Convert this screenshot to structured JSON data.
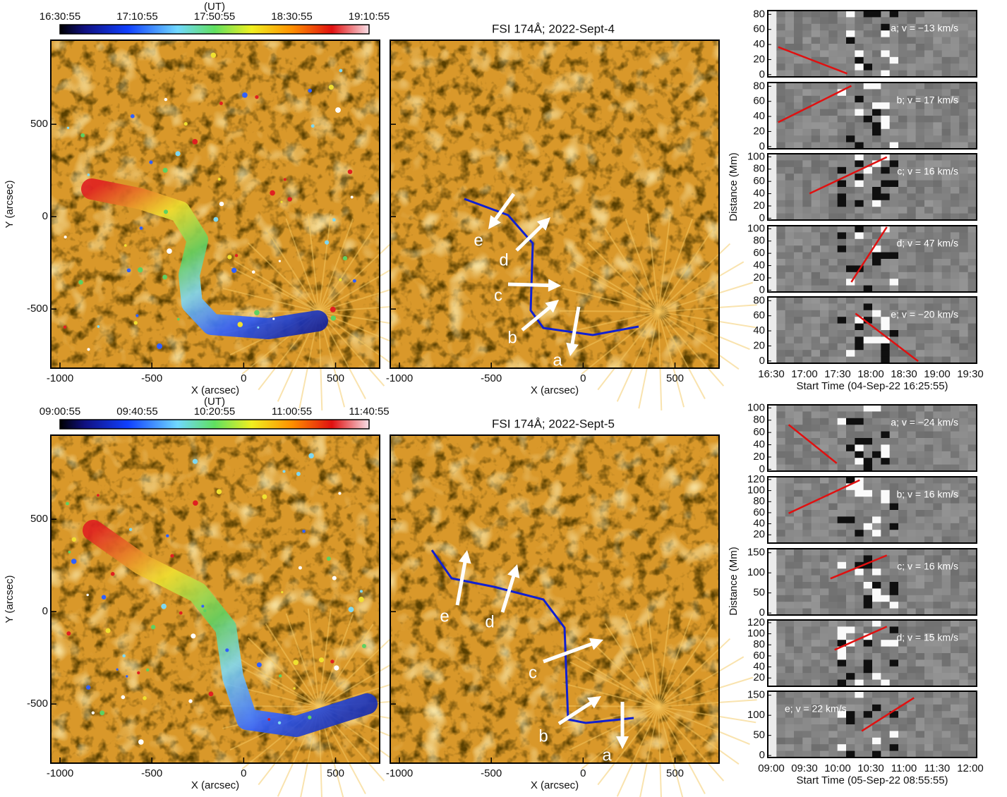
{
  "rows": [
    {
      "colorbar": {
        "unit": "(UT)",
        "ticks": [
          "16:30:55",
          "17:10:55",
          "17:50:55",
          "18:30:55",
          "19:10:55"
        ]
      },
      "map_title": "FSI 174Å; 2022-Sept-4",
      "xlim": [
        -1050,
        740
      ],
      "ylim": [
        -820,
        955
      ],
      "xticks": [
        -1000,
        -500,
        0,
        500
      ],
      "yticks": [
        -500,
        0,
        500
      ],
      "xlabel": "X (arcsec)",
      "ylabel": "Y (arcsec)",
      "path_labels": [
        "a",
        "b",
        "c",
        "d",
        "e"
      ],
      "td": {
        "ylabel": "Distance (Mm)",
        "xlabel": "Start Time (04-Sep-22 16:25:55)",
        "xticks": [
          "16:30",
          "17:00",
          "17:30",
          "18:00",
          "18:30",
          "19:00",
          "19:30"
        ],
        "panels": [
          {
            "label": "a; v = −13 km/s",
            "ylim": [
              -3,
              85
            ],
            "yticks": [
              0,
              20,
              40,
              60,
              80
            ]
          },
          {
            "label": "b; v = 17 km/s",
            "ylim": [
              -3,
              85
            ],
            "yticks": [
              0,
              20,
              40,
              60,
              80
            ]
          },
          {
            "label": "c; v = 16 km/s",
            "ylim": [
              -3,
              105
            ],
            "yticks": [
              0,
              20,
              40,
              60,
              80,
              100
            ]
          },
          {
            "label": "d; v = 47 km/s",
            "ylim": [
              -3,
              105
            ],
            "yticks": [
              0,
              20,
              40,
              60,
              80,
              100
            ]
          },
          {
            "label": "e; v = −20 km/s",
            "ylim": [
              -3,
              85
            ],
            "yticks": [
              0,
              20,
              40,
              60,
              80
            ]
          }
        ]
      }
    },
    {
      "colorbar": {
        "unit": "(UT)",
        "ticks": [
          "09:00:55",
          "09:40:55",
          "10:20:55",
          "11:00:55",
          "11:40:55"
        ]
      },
      "map_title": "FSI 174Å; 2022-Sept-5",
      "xlim": [
        -1050,
        740
      ],
      "ylim": [
        -820,
        955
      ],
      "xticks": [
        -1000,
        -500,
        0,
        500
      ],
      "yticks": [
        -500,
        0,
        500
      ],
      "xlabel": "X (arcsec)",
      "ylabel": "Y (arcsec)",
      "path_labels": [
        "a",
        "b",
        "c",
        "d",
        "e"
      ],
      "td": {
        "ylabel": "Distance (Mm)",
        "xlabel": "Start Time (05-Sep-22 08:55:55)",
        "xticks": [
          "09:00",
          "09:30",
          "10:00",
          "10:30",
          "11:00",
          "11:30",
          "12:00"
        ],
        "panels": [
          {
            "label": "a; v = −24 km/s",
            "ylim": [
              -3,
              105
            ],
            "yticks": [
              0,
              20,
              40,
              60,
              80,
              100
            ]
          },
          {
            "label": "b; v = 16 km/s",
            "ylim": [
              5,
              125
            ],
            "yticks": [
              20,
              40,
              60,
              80,
              100,
              120
            ]
          },
          {
            "label": "c; v = 16 km/s",
            "ylim": [
              -5,
              160
            ],
            "yticks": [
              0,
              50,
              100,
              150
            ]
          },
          {
            "label": "d; v = 15 km/s",
            "ylim": [
              5,
              125
            ],
            "yticks": [
              20,
              40,
              60,
              80,
              100,
              120
            ]
          },
          {
            "label": "e; v = 22 km/s",
            "ylim": [
              -5,
              160
            ],
            "yticks": [
              0,
              50,
              100,
              150
            ]
          }
        ]
      }
    }
  ]
}
